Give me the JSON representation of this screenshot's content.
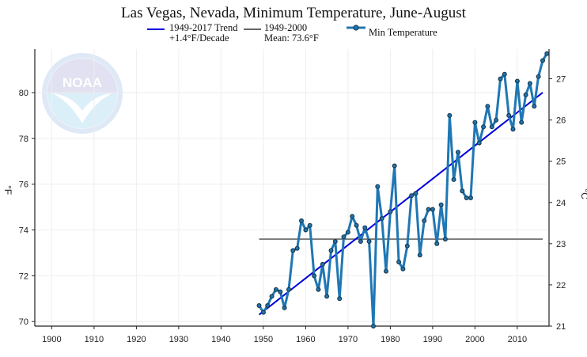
{
  "chart_data": {
    "type": "line",
    "title": "Las Vegas, Nevada, Minimum Temperature, June-August",
    "ylabel_left": "°F",
    "ylabel_right": "°C",
    "xlim": [
      1896,
      2017.5
    ],
    "ylim": [
      69.8,
      81.9
    ],
    "ylim_celsius": [
      21.0,
      27.72
    ],
    "x_ticks": [
      1900,
      1910,
      1920,
      1930,
      1940,
      1950,
      1960,
      1970,
      1980,
      1990,
      2000,
      2010
    ],
    "y_ticks_left": [
      70,
      72,
      74,
      76,
      78,
      80
    ],
    "y_ticks_right": [
      21,
      22,
      23,
      24,
      25,
      26,
      27
    ],
    "grid": true,
    "colors": {
      "series": "#1f77b4",
      "marker": "#1a3a4e",
      "trend": "#0000dd",
      "mean": "#666666"
    },
    "legend": {
      "trend_line1": "1949-2017 Trend",
      "trend_line2": "+1.4°F/Decade",
      "mean_line1": "1949-2000",
      "mean_line2": "Mean: 73.6°F",
      "series_label": "Min Temperature"
    },
    "trend": {
      "x": [
        1949,
        2016
      ],
      "y": [
        70.3,
        80.0
      ]
    },
    "mean": {
      "x": [
        1949,
        2016
      ],
      "y": [
        73.6,
        73.6
      ]
    },
    "logo": {
      "name": "noaa-logo",
      "text": "NOAA"
    },
    "series": [
      {
        "name": "Min Temperature",
        "x": [
          1949,
          1950,
          1951,
          1952,
          1953,
          1954,
          1955,
          1956,
          1957,
          1958,
          1959,
          1960,
          1961,
          1962,
          1963,
          1964,
          1965,
          1966,
          1967,
          1968,
          1969,
          1970,
          1971,
          1972,
          1973,
          1974,
          1975,
          1976,
          1977,
          1978,
          1979,
          1980,
          1981,
          1982,
          1983,
          1984,
          1985,
          1986,
          1987,
          1988,
          1989,
          1990,
          1991,
          1992,
          1993,
          1994,
          1995,
          1996,
          1997,
          1998,
          1999,
          2000,
          2001,
          2002,
          2003,
          2004,
          2005,
          2006,
          2007,
          2008,
          2009,
          2010,
          2011,
          2012,
          2013,
          2014,
          2015,
          2016,
          2017
        ],
        "values": [
          70.7,
          70.4,
          70.7,
          71.1,
          71.4,
          71.3,
          70.6,
          71.4,
          73.1,
          73.2,
          74.4,
          74.0,
          74.2,
          72.0,
          71.4,
          72.5,
          71.1,
          73.1,
          73.5,
          71.0,
          73.7,
          73.9,
          74.6,
          74.2,
          73.5,
          74.1,
          73.5,
          69.8,
          75.9,
          74.5,
          72.2,
          74.8,
          76.8,
          72.6,
          72.3,
          73.3,
          75.5,
          75.6,
          72.9,
          74.4,
          74.9,
          74.9,
          73.4,
          75.1,
          73.6,
          79.0,
          76.2,
          77.4,
          75.7,
          75.4,
          75.4,
          78.7,
          77.8,
          78.5,
          79.4,
          78.5,
          78.8,
          80.6,
          80.8,
          79.0,
          78.4,
          80.5,
          78.7,
          79.9,
          80.4,
          79.4,
          80.7,
          81.4,
          81.7
        ]
      }
    ]
  }
}
